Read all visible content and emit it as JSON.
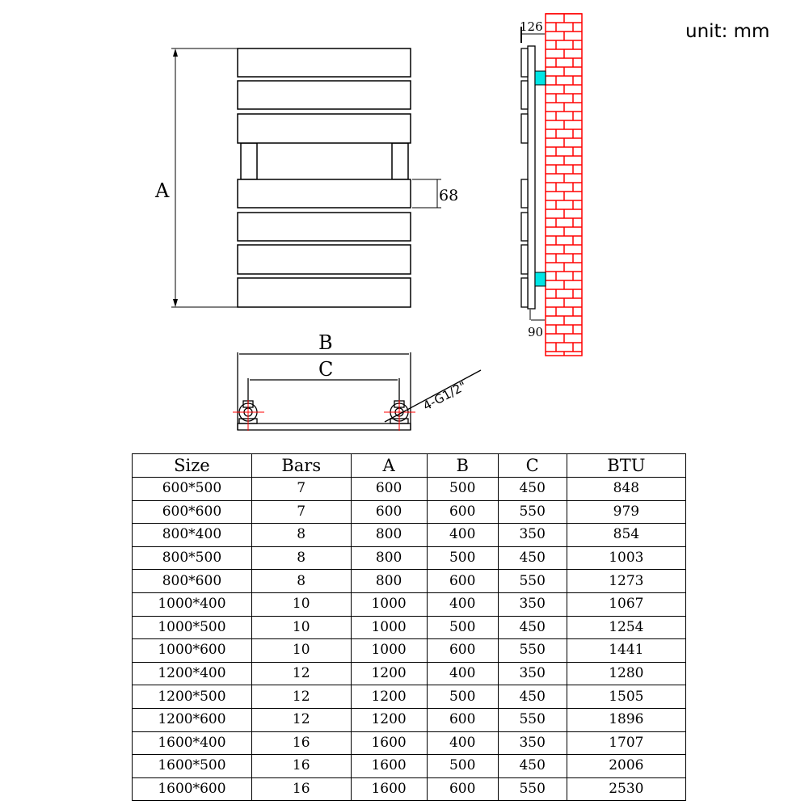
{
  "unit_label": "unit: mm",
  "diagram": {
    "front_view": {
      "height_label": "A",
      "bar_height_label": "68",
      "bar_count_shown": 7
    },
    "side_view": {
      "depth_label": "126",
      "wall_gap_label": "90",
      "wall_color": "#ff0000",
      "bracket_color": "#00e5e5"
    },
    "bottom_view": {
      "width_label": "B",
      "pipe_centre_label": "C",
      "connection_label": "4-G1/2\""
    }
  },
  "table": {
    "headers": [
      "Size",
      "Bars",
      "A",
      "B",
      "C",
      "BTU"
    ],
    "rows": [
      [
        "600*500",
        "7",
        "600",
        "500",
        "450",
        "848"
      ],
      [
        "600*600",
        "7",
        "600",
        "600",
        "550",
        "979"
      ],
      [
        "800*400",
        "8",
        "800",
        "400",
        "350",
        "854"
      ],
      [
        "800*500",
        "8",
        "800",
        "500",
        "450",
        "1003"
      ],
      [
        "800*600",
        "8",
        "800",
        "600",
        "550",
        "1273"
      ],
      [
        "1000*400",
        "10",
        "1000",
        "400",
        "350",
        "1067"
      ],
      [
        "1000*500",
        "10",
        "1000",
        "500",
        "450",
        "1254"
      ],
      [
        "1000*600",
        "10",
        "1000",
        "600",
        "550",
        "1441"
      ],
      [
        "1200*400",
        "12",
        "1200",
        "400",
        "350",
        "1280"
      ],
      [
        "1200*500",
        "12",
        "1200",
        "500",
        "450",
        "1505"
      ],
      [
        "1200*600",
        "12",
        "1200",
        "600",
        "550",
        "1896"
      ],
      [
        "1600*400",
        "16",
        "1600",
        "400",
        "350",
        "1707"
      ],
      [
        "1600*500",
        "16",
        "1600",
        "500",
        "450",
        "2006"
      ],
      [
        "1600*600",
        "16",
        "1600",
        "600",
        "550",
        "2530"
      ]
    ]
  }
}
